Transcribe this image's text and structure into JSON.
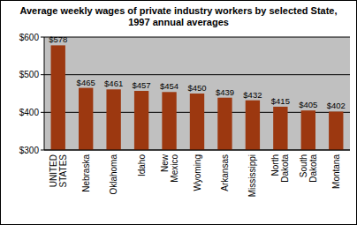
{
  "chart_data": {
    "type": "bar",
    "title": "Average weekly wages of private industry workers by selected State, 1997 annual averages",
    "categories": [
      "UNITED STATES",
      "Nebraska",
      "Oklahoma",
      "Idaho",
      "New Mexico",
      "Wyoming",
      "Arkansas",
      "Mississippi",
      "North Dakota",
      "South Dakota",
      "Montana"
    ],
    "values": [
      578,
      465,
      461,
      457,
      454,
      450,
      439,
      432,
      415,
      405,
      402
    ],
    "value_labels": [
      "$578",
      "$465",
      "$461",
      "$457",
      "$454",
      "$450",
      "$439",
      "$432",
      "$415",
      "$405",
      "$402"
    ],
    "color": "#9c3810",
    "ylim": [
      300,
      600
    ],
    "yticks": [
      {
        "value": 300,
        "label": "$300"
      },
      {
        "value": 400,
        "label": "$400"
      },
      {
        "value": 500,
        "label": "$500"
      },
      {
        "value": 600,
        "label": "$600"
      }
    ],
    "grid": true,
    "data_labels": true
  }
}
